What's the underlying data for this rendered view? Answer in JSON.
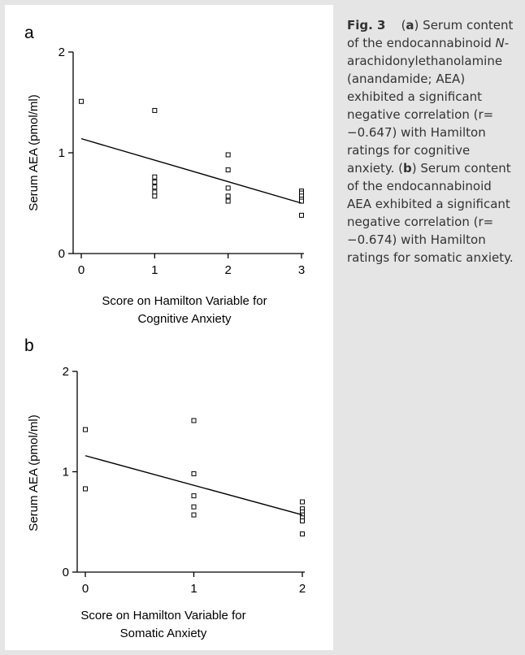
{
  "chart_data": [
    {
      "type": "scatter",
      "panel": "a",
      "xlabel": [
        "Score on Hamilton Variable for",
        "Cognitive Anxiety"
      ],
      "ylabel": "Serum AEA  (pmol/ml)",
      "x_ticks": [
        "0",
        "1",
        "2",
        "3"
      ],
      "y_ticks": [
        "0",
        "1",
        "2"
      ],
      "xlim": [
        0,
        3
      ],
      "ylim": [
        0,
        2
      ],
      "grid": false,
      "points": [
        {
          "x": 0,
          "y": 1.51
        },
        {
          "x": 1,
          "y": 1.42
        },
        {
          "x": 1,
          "y": 0.76
        },
        {
          "x": 1,
          "y": 0.71
        },
        {
          "x": 1,
          "y": 0.66
        },
        {
          "x": 1,
          "y": 0.61
        },
        {
          "x": 1,
          "y": 0.57
        },
        {
          "x": 2,
          "y": 0.98
        },
        {
          "x": 2,
          "y": 0.83
        },
        {
          "x": 2,
          "y": 0.65
        },
        {
          "x": 2,
          "y": 0.57
        },
        {
          "x": 2,
          "y": 0.52
        },
        {
          "x": 3,
          "y": 0.62
        },
        {
          "x": 3,
          "y": 0.6
        },
        {
          "x": 3,
          "y": 0.57
        },
        {
          "x": 3,
          "y": 0.54
        },
        {
          "x": 3,
          "y": 0.52
        },
        {
          "x": 3,
          "y": 0.38
        }
      ],
      "fit_line": [
        {
          "x": 0,
          "y": 1.14
        },
        {
          "x": 3,
          "y": 0.5
        }
      ]
    },
    {
      "type": "scatter",
      "panel": "b",
      "xlabel": [
        "Score on Hamilton Variable for",
        "Somatic Anxiety"
      ],
      "ylabel": "Serum AEA  (pmol/ml)",
      "x_ticks": [
        "0",
        "1",
        "2"
      ],
      "y_ticks": [
        "0",
        "1",
        "2"
      ],
      "xlim": [
        0,
        2
      ],
      "ylim": [
        0,
        2
      ],
      "grid": false,
      "points": [
        {
          "x": 0,
          "y": 1.42
        },
        {
          "x": 0,
          "y": 0.83
        },
        {
          "x": 1,
          "y": 1.51
        },
        {
          "x": 1,
          "y": 0.98
        },
        {
          "x": 1,
          "y": 0.76
        },
        {
          "x": 1,
          "y": 0.65
        },
        {
          "x": 1,
          "y": 0.57
        },
        {
          "x": 2,
          "y": 0.7
        },
        {
          "x": 2,
          "y": 0.63
        },
        {
          "x": 2,
          "y": 0.6
        },
        {
          "x": 2,
          "y": 0.57
        },
        {
          "x": 2,
          "y": 0.54
        },
        {
          "x": 2,
          "y": 0.51
        },
        {
          "x": 2,
          "y": 0.38
        }
      ],
      "fit_line": [
        {
          "x": 0,
          "y": 1.16
        },
        {
          "x": 2,
          "y": 0.57
        }
      ]
    }
  ],
  "caption": {
    "fig_label": "Fig. 3",
    "a_open": "(",
    "a_letter": "a",
    "a_close": ")",
    "a_text_1": " Serum content of the endocannabinoid ",
    "a_italic": "N",
    "a_text_2": "-arachidonylethanola­mine (anandamide; AEA) exhibited a significant negative correlation (r= −0.647) with Hamilton ratings for cognitive anxiety. ",
    "b_open": "(",
    "b_letter": "b",
    "b_close": ")",
    "b_text": " Serum content of the endocannabinoid AEA exhibited a significant negative correlation (r= −0.674) with Hamilton ratings for somatic anxiety."
  }
}
